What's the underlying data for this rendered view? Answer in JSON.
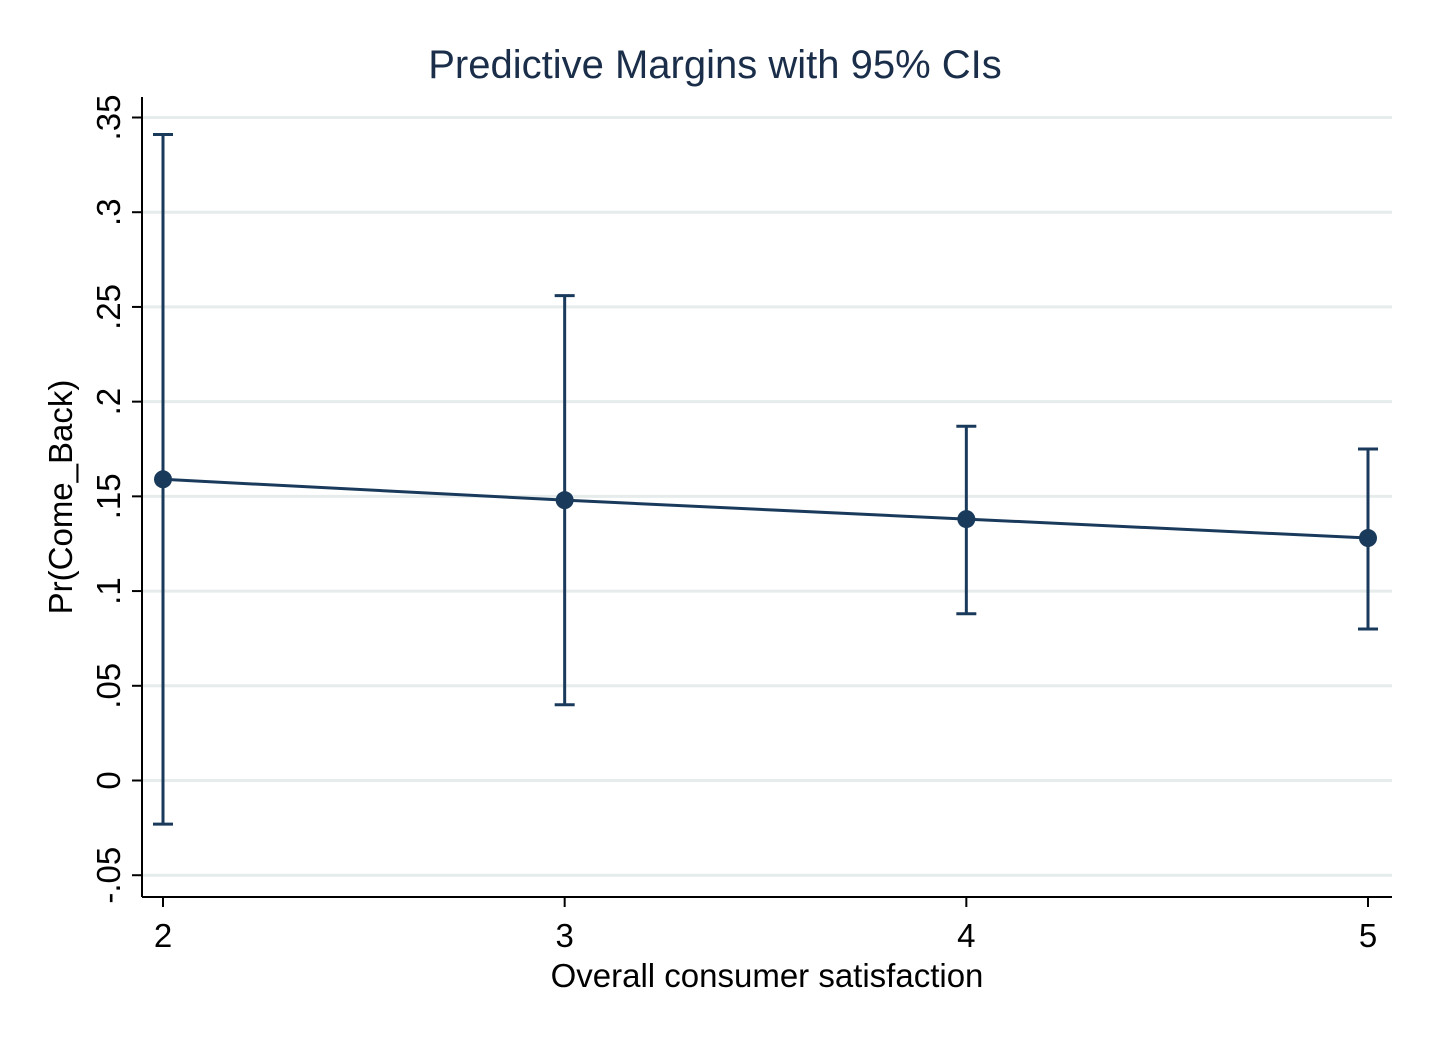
{
  "chart_data": {
    "type": "line",
    "title": "Predictive Margins with 95% CIs",
    "xlabel": "Overall consumer satisfaction",
    "ylabel": "Pr(Come_Back)",
    "x_ticks": [
      2,
      3,
      4,
      5
    ],
    "x_tick_labels": [
      "2",
      "3",
      "4",
      "5"
    ],
    "y_ticks": [
      -0.05,
      0,
      0.05,
      0.1,
      0.15,
      0.2,
      0.25,
      0.3,
      0.35
    ],
    "y_tick_labels": [
      "-.05",
      "0",
      ".05",
      ".1",
      ".15",
      ".2",
      ".25",
      ".3",
      ".35"
    ],
    "xlim": [
      2,
      5
    ],
    "ylim": [
      -0.06,
      0.36
    ],
    "grid": true,
    "series": [
      {
        "x": [
          2,
          3,
          4,
          5
        ],
        "y": [
          0.159,
          0.148,
          0.138,
          0.128
        ],
        "ci_lower": [
          -0.023,
          0.04,
          0.088,
          0.08
        ],
        "ci_upper": [
          0.341,
          0.256,
          0.187,
          0.175
        ]
      }
    ],
    "colors": {
      "series": "#1a3a5c",
      "grid": "#e6ecec",
      "axis": "#000000",
      "title": "#1a2e4a"
    }
  }
}
